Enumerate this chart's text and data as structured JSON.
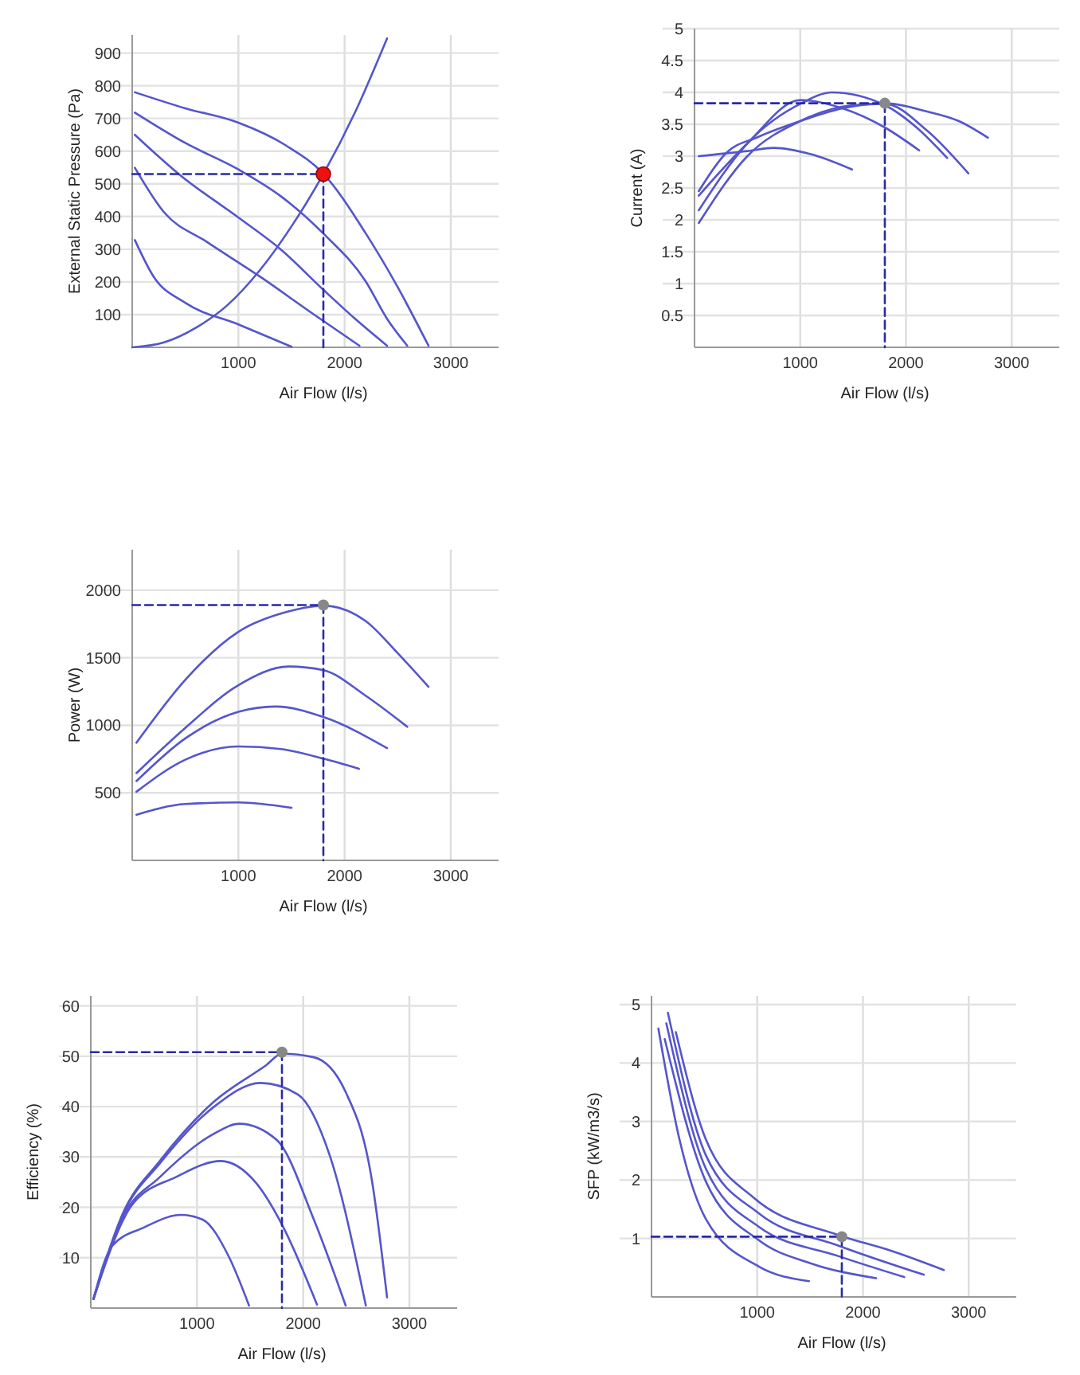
{
  "chart_data": [
    {
      "type": "line",
      "xlabel": "Air Flow (l/s)",
      "ylabel": "External Static Pressure (Pa)",
      "xlim": [
        0,
        3450
      ],
      "ylim": [
        0,
        955
      ],
      "xticks": [
        1000,
        2000,
        3000
      ],
      "yticks": [
        100,
        200,
        300,
        400,
        500,
        600,
        700,
        800,
        900
      ],
      "grid": true,
      "series": [
        {
          "color": "#5555cc",
          "x": [
            25,
            500,
            1000,
            1450,
            1800,
            2200,
            2500,
            2790
          ],
          "values": [
            780,
            731,
            687,
            617,
            531,
            348,
            184,
            5
          ]
        },
        {
          "color": "#5555cc",
          "x": [
            25,
            500,
            1000,
            1400,
            1800,
            2200,
            2400,
            2590
          ],
          "values": [
            718,
            625,
            544,
            462,
            348,
            201,
            87,
            5
          ]
        },
        {
          "color": "#5555cc",
          "x": [
            25,
            450,
            1000,
            1400,
            1800,
            2100,
            2400
          ],
          "values": [
            650,
            527,
            397,
            299,
            176,
            87,
            5
          ]
        },
        {
          "color": "#5555cc",
          "x": [
            25,
            300,
            700,
            1200,
            1700,
            2140
          ],
          "values": [
            549,
            413,
            323,
            217,
            103,
            5
          ]
        },
        {
          "color": "#5555cc",
          "x": [
            25,
            200,
            500,
            1000,
            1500
          ],
          "values": [
            328,
            217,
            136,
            70,
            2
          ]
        },
        {
          "color": "#5555cc",
          "x": [
            0,
            300,
            600,
            900,
            1200,
            1500,
            1800,
            2100,
            2400
          ],
          "values": [
            0,
            15,
            60,
            130,
            235,
            370,
            530,
            720,
            945
          ]
        },
        {
          "color": "#2a2aa8",
          "line_style": "dashed",
          "x": [
            0,
            1800,
            1800
          ],
          "values": [
            530,
            530,
            0
          ]
        },
        {
          "type": "scatter",
          "marker": "circle",
          "color": "#ee1111",
          "x": [
            1800
          ],
          "values": [
            530
          ]
        }
      ]
    },
    {
      "type": "line",
      "xlabel": "Air Flow (l/s)",
      "ylabel": "Current (A)",
      "xlim": [
        0,
        3450
      ],
      "ylim": [
        0,
        5
      ],
      "xticks": [
        1000,
        2000,
        3000
      ],
      "yticks": [
        0.5,
        1,
        1.5,
        2,
        2.5,
        3,
        3.5,
        4,
        4.5,
        5
      ],
      "grid": true,
      "series": [
        {
          "color": "#5555cc",
          "x": [
            40,
            300,
            600,
            1000,
            1400,
            1800,
            2200,
            2500,
            2775
          ],
          "values": [
            2.45,
            3.05,
            3.3,
            3.55,
            3.75,
            3.83,
            3.7,
            3.55,
            3.29
          ]
        },
        {
          "color": "#5555cc",
          "x": [
            40,
            500,
            1000,
            1500,
            1800,
            2200,
            2590
          ],
          "values": [
            1.95,
            3.0,
            3.55,
            3.8,
            3.82,
            3.4,
            2.73
          ]
        },
        {
          "color": "#5555cc",
          "x": [
            40,
            500,
            1000,
            1300,
            1800,
            2100,
            2390
          ],
          "values": [
            2.15,
            3.2,
            3.82,
            4.0,
            3.8,
            3.45,
            2.97
          ]
        },
        {
          "color": "#5555cc",
          "x": [
            40,
            500,
            1000,
            1400,
            1800,
            2125
          ],
          "values": [
            2.38,
            3.2,
            3.88,
            3.75,
            3.45,
            3.09
          ]
        },
        {
          "color": "#5555cc",
          "x": [
            40,
            500,
            750,
            1100,
            1490
          ],
          "values": [
            3.0,
            3.08,
            3.13,
            3.03,
            2.79
          ]
        },
        {
          "color": "#2a2aa8",
          "line_style": "dashed",
          "x": [
            0,
            1800,
            1800
          ],
          "values": [
            3.83,
            3.83,
            0
          ]
        },
        {
          "type": "scatter",
          "marker": "circle",
          "color": "#888888",
          "x": [
            1800
          ],
          "values": [
            3.83
          ]
        }
      ]
    },
    {
      "type": "line",
      "xlabel": "Air Flow (l/s)",
      "ylabel": "Power (W)",
      "xlim": [
        0,
        3450
      ],
      "ylim": [
        0,
        2300
      ],
      "xticks": [
        1000,
        2000,
        3000
      ],
      "yticks": [
        500,
        1000,
        1500,
        2000
      ],
      "grid": true,
      "series": [
        {
          "color": "#5555cc",
          "x": [
            40,
            500,
            1000,
            1450,
            1800,
            2200,
            2500,
            2790
          ],
          "values": [
            871,
            1337,
            1692,
            1838,
            1885,
            1771,
            1534,
            1285
          ]
        },
        {
          "color": "#5555cc",
          "x": [
            40,
            500,
            1000,
            1475,
            1800,
            2200,
            2590
          ],
          "values": [
            646,
            981,
            1297,
            1435,
            1408,
            1218,
            989
          ]
        },
        {
          "color": "#5555cc",
          "x": [
            40,
            500,
            1000,
            1350,
            1800,
            2400
          ],
          "values": [
            587,
            903,
            1100,
            1139,
            1061,
            831
          ]
        },
        {
          "color": "#5555cc",
          "x": [
            40,
            500,
            1000,
            1400,
            1800,
            2135
          ],
          "values": [
            508,
            745,
            843,
            824,
            753,
            678
          ]
        },
        {
          "color": "#5555cc",
          "x": [
            40,
            500,
            1000,
            1500
          ],
          "values": [
            338,
            417,
            429,
            389
          ]
        },
        {
          "color": "#2a2aa8",
          "line_style": "dashed",
          "x": [
            0,
            1800,
            1800
          ],
          "values": [
            1890,
            1890,
            0
          ]
        },
        {
          "type": "scatter",
          "marker": "circle",
          "color": "#888888",
          "x": [
            1800
          ],
          "values": [
            1890
          ]
        }
      ]
    },
    {
      "type": "line",
      "xlabel": "Air Flow (l/s)",
      "ylabel": "Efficiency (%)",
      "xlim": [
        0,
        3450
      ],
      "ylim": [
        0,
        62
      ],
      "xticks": [
        1000,
        2000,
        3000
      ],
      "yticks": [
        10,
        20,
        30,
        40,
        50,
        60
      ],
      "grid": true,
      "series": [
        {
          "color": "#5555cc",
          "x": [
            25,
            300,
            650,
            1150,
            1650,
            1800,
            2100,
            2400,
            2650,
            2790
          ],
          "values": [
            1.8,
            18.7,
            29.2,
            40.8,
            48.2,
            50.5,
            49.8,
            42.9,
            25,
            2.1
          ]
        },
        {
          "color": "#5555cc",
          "x": [
            25,
            300,
            650,
            1150,
            1600,
            1950,
            2250,
            2590
          ],
          "values": [
            1.8,
            18.5,
            28.7,
            39.8,
            44.7,
            42.4,
            30.3,
            0.5
          ]
        },
        {
          "color": "#5555cc",
          "x": [
            25,
            300,
            650,
            1150,
            1400,
            1750,
            2100,
            2400
          ],
          "values": [
            1.8,
            18,
            26,
            34.5,
            36.6,
            33.4,
            17.6,
            0.5
          ]
        },
        {
          "color": "#5555cc",
          "x": [
            25,
            400,
            800,
            1225,
            1550,
            1800,
            2130
          ],
          "values": [
            1.8,
            20.8,
            26,
            29.2,
            25,
            16.6,
            0.7
          ]
        },
        {
          "color": "#5555cc",
          "x": [
            25,
            200,
            500,
            850,
            1050,
            1300,
            1490
          ],
          "values": [
            1.8,
            12.3,
            16,
            18.5,
            17.6,
            10.2,
            0.5
          ]
        },
        {
          "color": "#2a2aa8",
          "line_style": "dashed",
          "x": [
            0,
            1800,
            1800
          ],
          "values": [
            50.8,
            50.8,
            0
          ]
        },
        {
          "type": "scatter",
          "marker": "circle",
          "color": "#888888",
          "x": [
            1800
          ],
          "values": [
            50.8
          ]
        }
      ]
    },
    {
      "type": "line",
      "xlabel": "Air Flow (l/s)",
      "ylabel": "SFP (kW/m3/s)",
      "xlim": [
        0,
        3450
      ],
      "ylim": [
        0,
        5.15
      ],
      "xticks": [
        1000,
        2000,
        3000
      ],
      "yticks": [
        1,
        2,
        3,
        4,
        5
      ],
      "grid": true,
      "series": [
        {
          "color": "#5555cc",
          "x": [
            230,
            515,
            965,
            1765,
            2265,
            2765
          ],
          "values": [
            4.53,
            2.69,
            1.7,
            1.06,
            0.79,
            0.46
          ]
        },
        {
          "color": "#5555cc",
          "x": [
            155,
            515,
            1015,
            1765,
            2575
          ],
          "values": [
            4.86,
            2.42,
            1.43,
            0.88,
            0.38
          ]
        },
        {
          "color": "#5555cc",
          "x": [
            140,
            515,
            1015,
            1765,
            2390
          ],
          "values": [
            4.68,
            2.19,
            1.2,
            0.7,
            0.34
          ]
        },
        {
          "color": "#5555cc",
          "x": [
            125,
            515,
            1015,
            1515,
            2125
          ],
          "values": [
            4.41,
            1.97,
            0.97,
            0.57,
            0.32
          ]
        },
        {
          "color": "#5555cc",
          "x": [
            65,
            265,
            515,
            1015,
            1490
          ],
          "values": [
            4.59,
            2.69,
            1.33,
            0.52,
            0.27
          ]
        },
        {
          "color": "#2a2aa8",
          "line_style": "dashed",
          "x": [
            0,
            1800,
            1800
          ],
          "values": [
            1.03,
            1.03,
            0
          ]
        },
        {
          "type": "scatter",
          "marker": "circle",
          "color": "#888888",
          "x": [
            1800
          ],
          "values": [
            1.03
          ]
        }
      ]
    }
  ]
}
